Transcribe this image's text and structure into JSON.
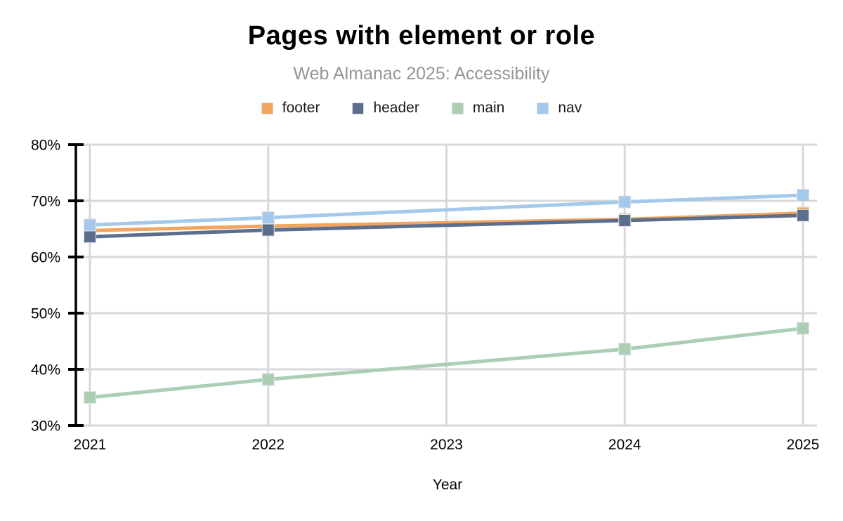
{
  "header": {
    "title": "Pages with element or role",
    "subtitle": "Web Almanac 2025: Accessibility"
  },
  "xlabel": "Year",
  "chart_data": {
    "type": "line",
    "title": "Pages with element or role",
    "subtitle": "Web Almanac 2025: Accessibility",
    "xlabel": "Year",
    "ylabel": "",
    "x_ticks": [
      2021,
      2022,
      2023,
      2024,
      2025
    ],
    "x": [
      2021,
      2022,
      2024,
      2025
    ],
    "missing_x": [
      2023
    ],
    "ylim": [
      30,
      80
    ],
    "y_ticks": [
      "30%",
      "40%",
      "50%",
      "60%",
      "70%",
      "80%"
    ],
    "grid": true,
    "legend_position": "top",
    "marker": "square",
    "series": [
      {
        "name": "footer",
        "color": "#f1a55f",
        "values": [
          64.7,
          65.5,
          66.7,
          67.8
        ]
      },
      {
        "name": "header",
        "color": "#5b6e8e",
        "values": [
          63.6,
          64.8,
          66.5,
          67.4
        ]
      },
      {
        "name": "main",
        "color": "#abceb4",
        "values": [
          35.0,
          38.2,
          43.6,
          47.3
        ]
      },
      {
        "name": "nav",
        "color": "#a4c9ec",
        "values": [
          65.7,
          67.0,
          69.8,
          71.0
        ]
      }
    ],
    "colors": {
      "grid": "#d8d8d8",
      "axis": "#000000",
      "tick_label": "#000000",
      "subtitle_text": "#969696"
    }
  }
}
